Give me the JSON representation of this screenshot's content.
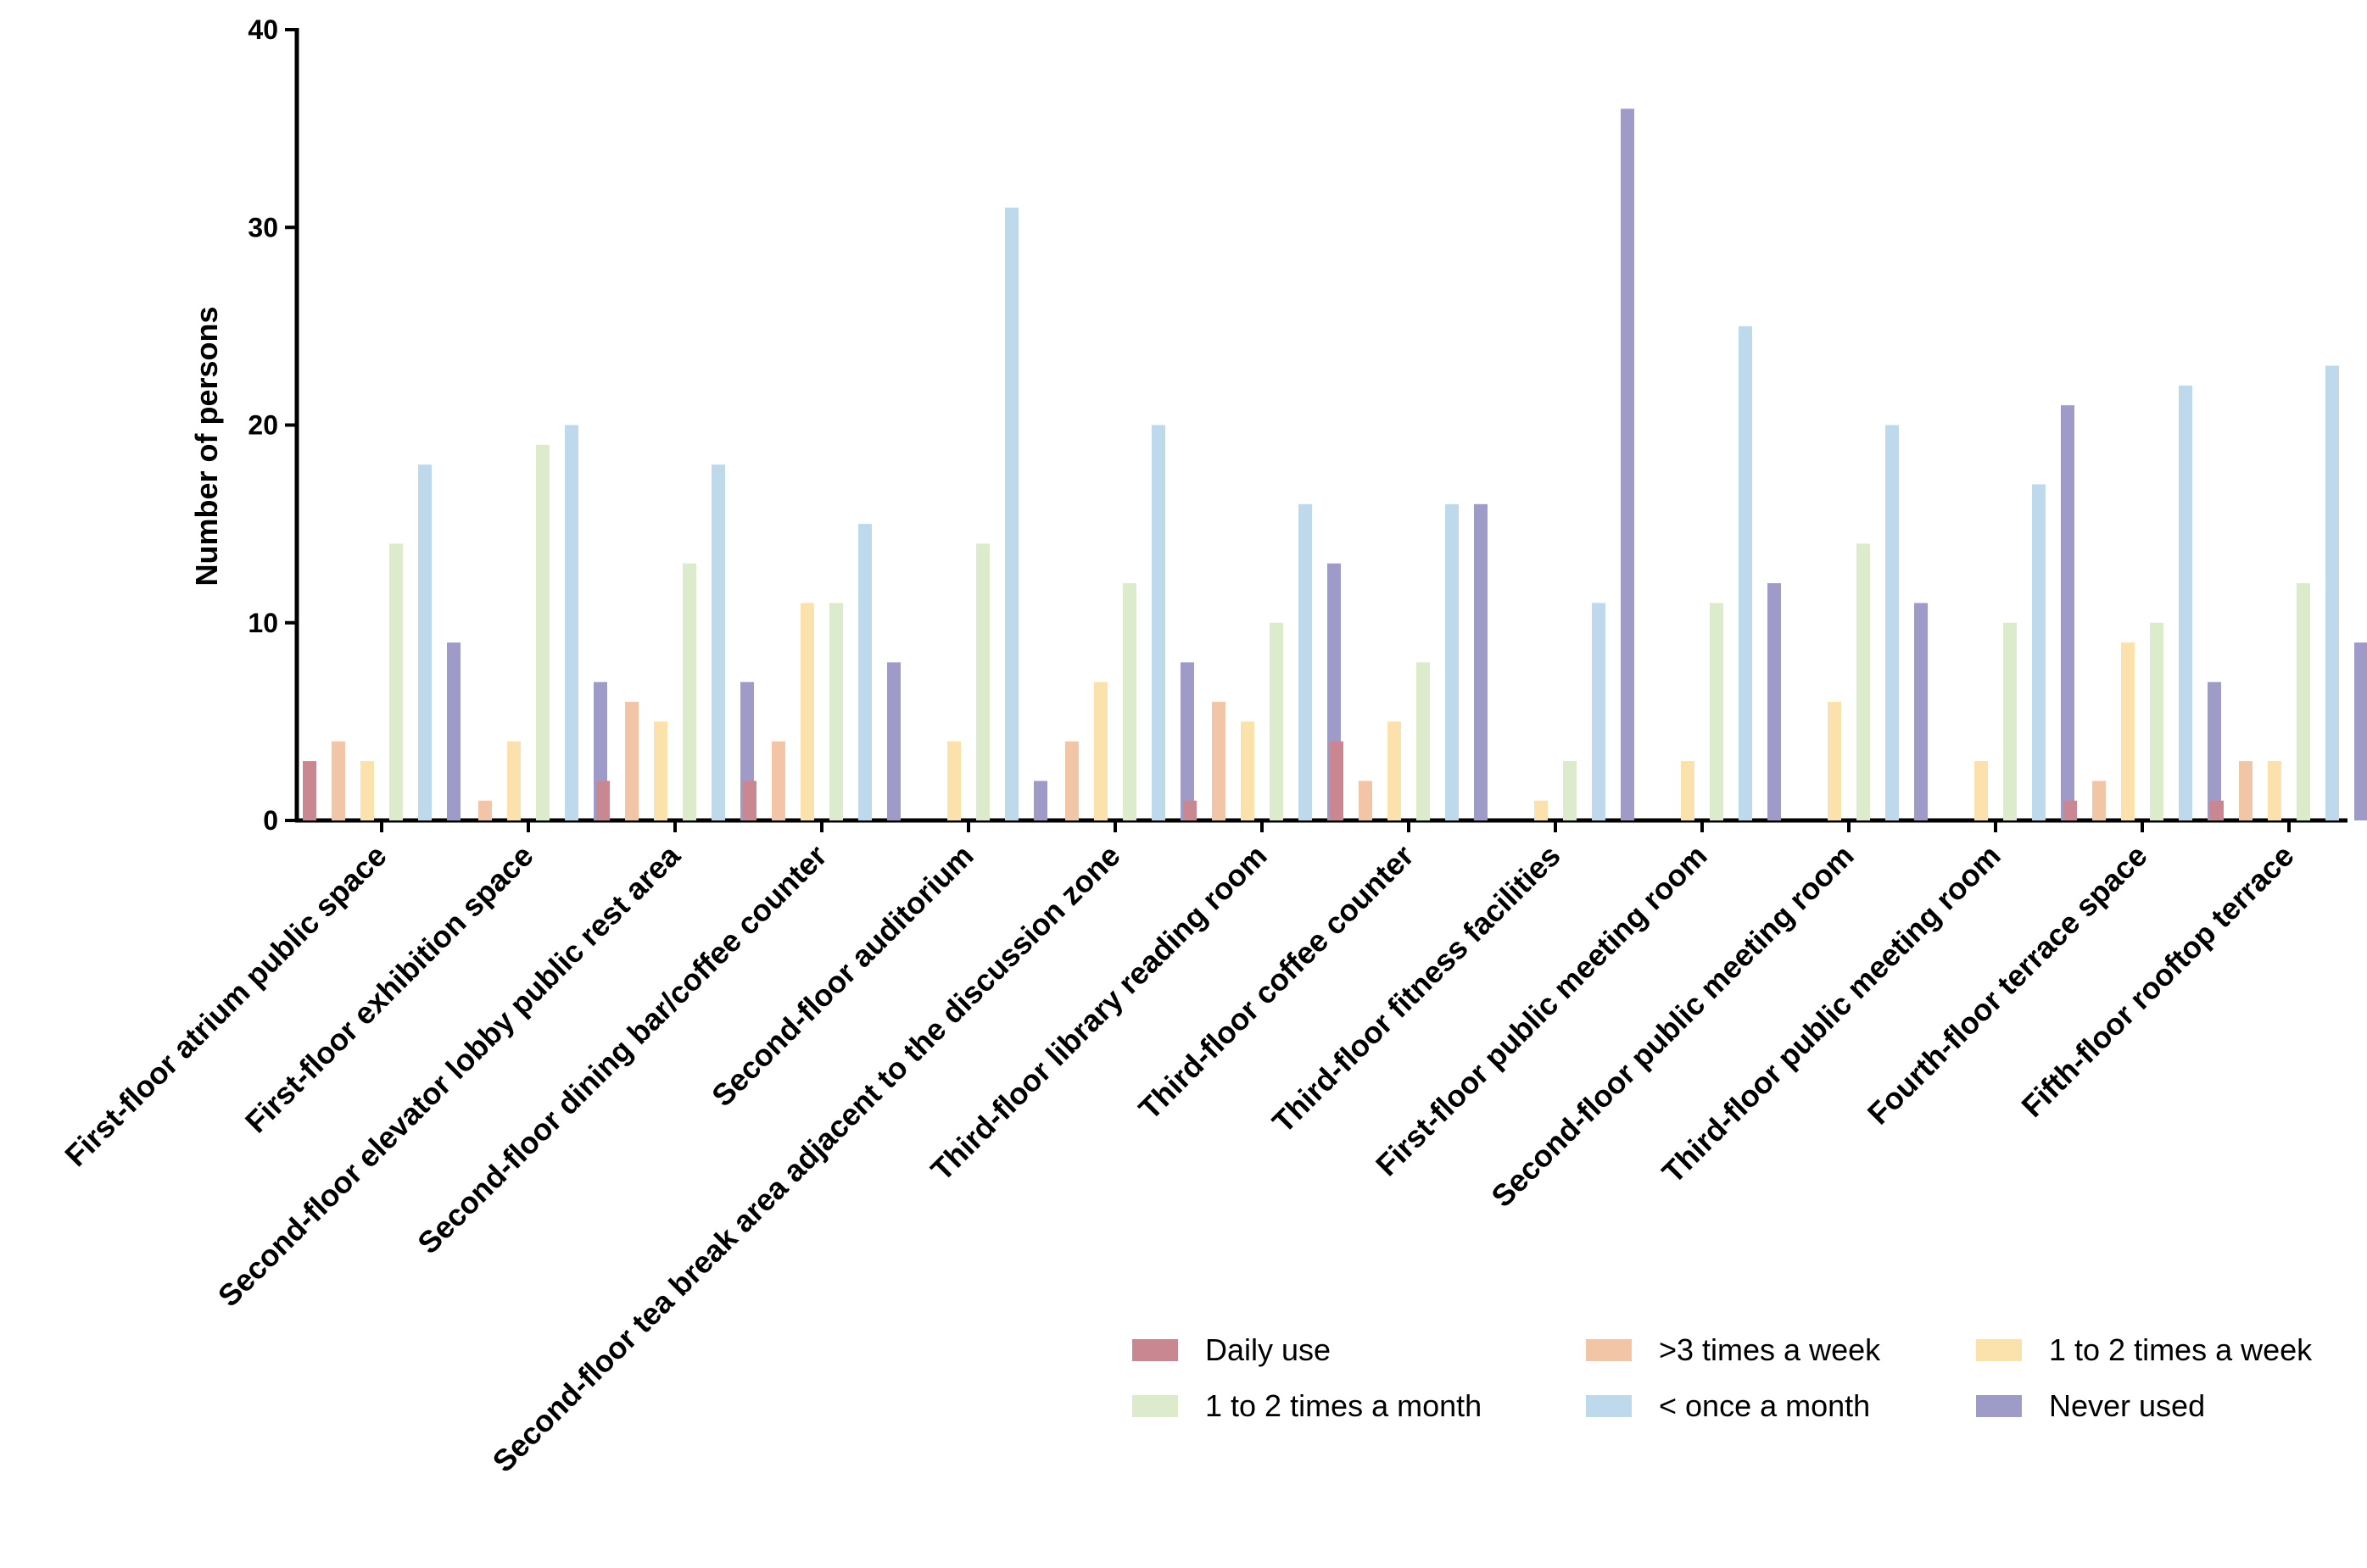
{
  "chart_data": {
    "type": "bar",
    "title": "",
    "xlabel": "",
    "ylabel": "Number of persons",
    "ylim": [
      0,
      40
    ],
    "yticks": [
      "0",
      "10",
      "20",
      "30",
      "40"
    ],
    "grid": false,
    "legend_position": "bottom-right",
    "categories": [
      "First-floor atrium public space",
      "First-floor exhibition space",
      "Second-floor elevator lobby public rest area",
      "Second-floor dining bar/coffee counter",
      "Second-floor auditorium",
      "Second-floor tea break area adjacent to the discussion zone",
      "Third-floor library reading room",
      "Third-floor coffee counter",
      "Third-floor fitness facilities",
      "First-floor public meeting room",
      "Second-floor public meeting room",
      "Third-floor public meeting room",
      "Fourth-floor terrace space",
      "Fifth-floor rooftop terrace"
    ],
    "series": [
      {
        "name": "Daily use",
        "color": "#C98891",
        "values": [
          3,
          0,
          2,
          2,
          0,
          0,
          1,
          4,
          0,
          0,
          0,
          0,
          1,
          1
        ]
      },
      {
        "name": ">3 times a week",
        "color": "#F2C5A6",
        "values": [
          4,
          1,
          6,
          4,
          0,
          4,
          6,
          2,
          0,
          0,
          0,
          0,
          2,
          3
        ]
      },
      {
        "name": "1 to 2 times a week",
        "color": "#FBE1AC",
        "values": [
          3,
          4,
          5,
          11,
          4,
          7,
          5,
          5,
          1,
          3,
          6,
          3,
          9,
          3
        ]
      },
      {
        "name": "1 to 2 times a month",
        "color": "#DCEBCB",
        "values": [
          14,
          19,
          13,
          11,
          14,
          12,
          10,
          8,
          3,
          11,
          14,
          10,
          10,
          12
        ]
      },
      {
        "name": "< once a month",
        "color": "#BED8EC",
        "values": [
          18,
          20,
          18,
          15,
          31,
          20,
          16,
          16,
          11,
          25,
          20,
          17,
          22,
          23
        ]
      },
      {
        "name": "Never used",
        "color": "#9E9BC8",
        "values": [
          9,
          7,
          7,
          8,
          2,
          8,
          13,
          16,
          36,
          12,
          11,
          21,
          7,
          9
        ]
      }
    ]
  }
}
